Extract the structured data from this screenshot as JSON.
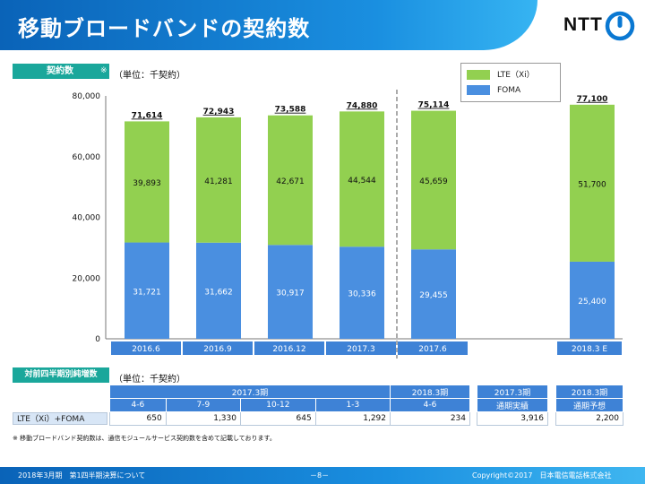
{
  "header": {
    "title": "移動ブロードバンドの契約数",
    "logo_text": "NTT"
  },
  "section1": {
    "label": "契約数",
    "note": "※",
    "unit": "（単位：千契約）"
  },
  "section2": {
    "label": "対前四半期別純増数",
    "unit": "（単位：千契約）"
  },
  "colors": {
    "lte": "#92d050",
    "foma": "#4a8fe0",
    "axis_bar": "#3e82d6"
  },
  "chart_data": {
    "type": "bar",
    "stacked": true,
    "categories": [
      "2016.6",
      "2016.9",
      "2016.12",
      "2017.3",
      "2017.6",
      "2018.3 E"
    ],
    "series": [
      {
        "name": "FOMA",
        "values": [
          31721,
          31662,
          30917,
          30336,
          29455,
          25400
        ],
        "labels": [
          "31,721",
          "31,662",
          "30,917",
          "30,336",
          "29,455",
          "25,400"
        ]
      },
      {
        "name": "LTE（Xi）",
        "values": [
          39893,
          41281,
          42671,
          44544,
          45659,
          51700
        ],
        "labels": [
          "39,893",
          "41,281",
          "42,671",
          "44,544",
          "45,659",
          "51,700"
        ]
      }
    ],
    "totals": [
      71614,
      72943,
      73588,
      74880,
      75114,
      77100
    ],
    "total_labels": [
      "71,614",
      "72,943",
      "73,588",
      "74,880",
      "75,114",
      "77,100"
    ],
    "yticks": [
      "0",
      "20,000",
      "40,000",
      "60,000",
      "80,000"
    ],
    "ylim": [
      0,
      80000
    ],
    "legend_position": "top-right"
  },
  "net_table": {
    "group1": "2017.3期",
    "group2": "2018.3期",
    "quarters": [
      "4-6",
      "7-9",
      "10-12",
      "1-3",
      "4-6"
    ],
    "result_header": [
      "2017.3期",
      "通期実績"
    ],
    "forecast_header": [
      "2018.3期",
      "通期予想"
    ],
    "row_label": "LTE（Xi）+FOMA",
    "values": [
      "650",
      "1,330",
      "645",
      "1,292",
      "234"
    ],
    "result_value": "3,916",
    "forecast_value": "2,200"
  },
  "footnote": "※  移動ブロードバンド契約数は、通信モジュールサービス契約数を含めて記載しております。",
  "footer": {
    "left": "2018年3月期　第1四半期決算について",
    "page": "－8－",
    "right": "Copyright©2017　日本電信電話株式会社"
  }
}
